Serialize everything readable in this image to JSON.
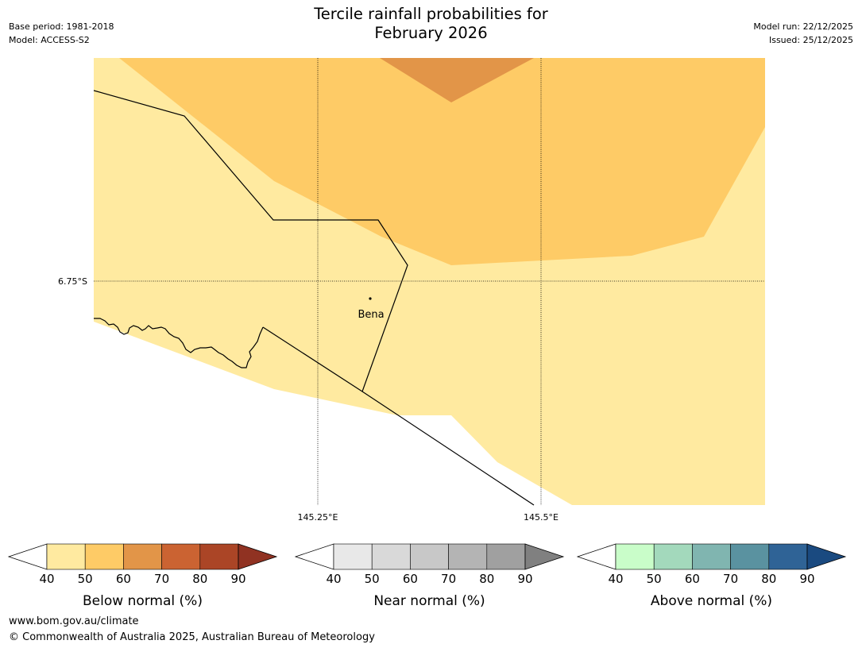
{
  "title_line1": "Tercile rainfall probabilities for",
  "title_line2": "February 2026",
  "meta_left": [
    "Base period: 1981-2018",
    "Model: ACCESS-S2"
  ],
  "meta_right": [
    "Model run: 22/12/2025",
    "Issued: 25/12/2025"
  ],
  "map": {
    "lat_label": "6.75°S",
    "lon_labels": [
      "145.25°E",
      "145.5°E"
    ],
    "place": "Bena"
  },
  "colorbars": [
    {
      "label": "Below normal (%)",
      "ticks": [
        "40",
        "50",
        "60",
        "70",
        "80",
        "90"
      ],
      "colors": [
        "#ffeaa0",
        "#fecb66",
        "#e29548",
        "#cb6332",
        "#ab4526",
        "#903222"
      ]
    },
    {
      "label": "Near normal (%)",
      "ticks": [
        "40",
        "50",
        "60",
        "70",
        "80",
        "90"
      ],
      "colors": [
        "#e8e8e8",
        "#d9d9d9",
        "#c8c8c8",
        "#b4b4b4",
        "#a0a0a0",
        "#808080"
      ]
    },
    {
      "label": "Above normal (%)",
      "ticks": [
        "40",
        "50",
        "60",
        "70",
        "80",
        "90"
      ],
      "colors": [
        "#c9fdc9",
        "#a3d9bc",
        "#80b5b0",
        "#5a92a0",
        "#2f6396",
        "#1a4a80"
      ]
    }
  ],
  "footer_url": "www.bom.gov.au/climate",
  "footer_copyright": "© Commonwealth of Australia 2025, Australian Bureau of Meteorology"
}
